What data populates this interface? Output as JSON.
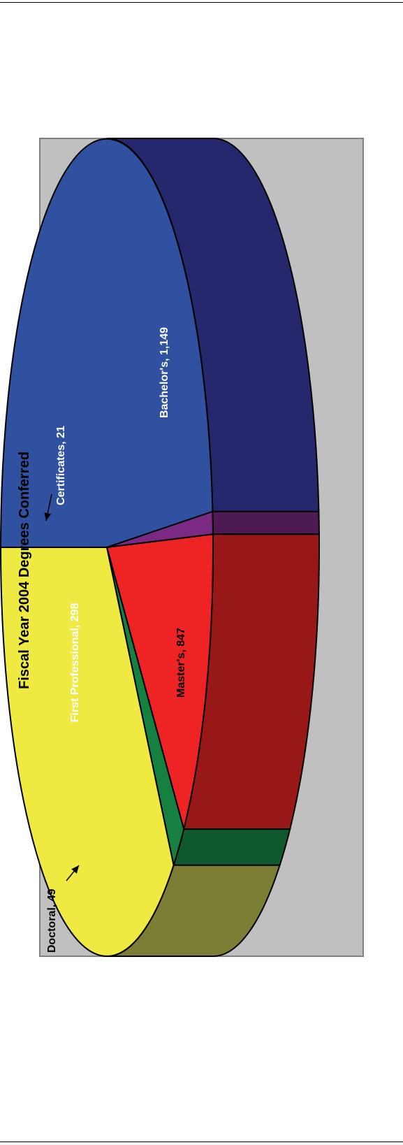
{
  "chart_data": {
    "type": "pie",
    "title": "Fiscal Year 2004 Degrees Conferred",
    "categories": [
      "Bachelor's",
      "Certificates",
      "First Professional",
      "Doctoral",
      "Master's"
    ],
    "values": [
      1149,
      21,
      298,
      49,
      847
    ],
    "labels": [
      "Bachelor's, 1,149",
      "Certificates, 21",
      "First Professional, 298",
      "Doctoral, 49",
      "Master's, 847"
    ],
    "colors": [
      "#3050a0",
      "#7a2a82",
      "#ee2424",
      "#158040",
      "#eeea42"
    ],
    "side_colors": [
      "#26286e",
      "#4e1a54",
      "#981818",
      "#0e5a2c",
      "#7c7e36"
    ],
    "plot_background": "#c0c0c0",
    "three_d": true,
    "orientation": "rotated 90° counter-clockwise",
    "legend": "none"
  }
}
